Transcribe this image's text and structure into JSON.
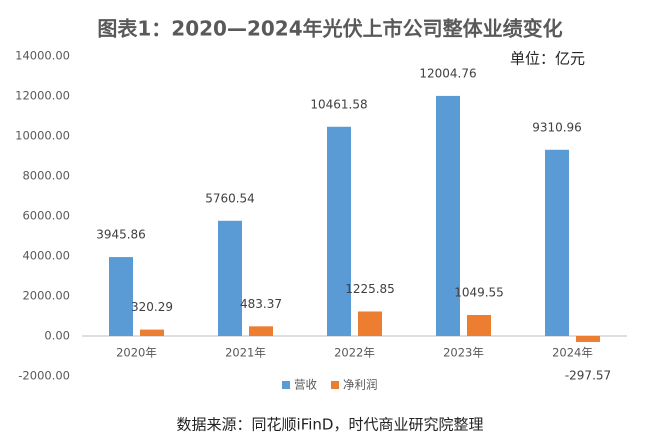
{
  "chart_data": {
    "type": "bar",
    "title": "图表1：2020—2024年光伏上市公司整体业绩变化",
    "unit": "单位：亿元",
    "source": "数据来源：同花顺iFinD，时代商业研究院整理",
    "categories": [
      "2020年",
      "2021年",
      "2022年",
      "2023年",
      "2024年"
    ],
    "series": [
      {
        "name": "营收",
        "color": "#5b9bd5",
        "values": [
          3945.86,
          5760.54,
          10461.58,
          12004.76,
          9310.96
        ]
      },
      {
        "name": "净利润",
        "color": "#ed7d31",
        "values": [
          320.29,
          483.37,
          1225.85,
          1049.55,
          -297.57
        ]
      }
    ],
    "ylim": [
      -2000,
      14000
    ],
    "yticks": [
      {
        "value": -2000,
        "label": "-2000.00"
      },
      {
        "value": 0,
        "label": "0.00"
      },
      {
        "value": 2000,
        "label": "2000.00"
      },
      {
        "value": 4000,
        "label": "4000.00"
      },
      {
        "value": 6000,
        "label": "6000.00"
      },
      {
        "value": 8000,
        "label": "8000.00"
      },
      {
        "value": 10000,
        "label": "10000.00"
      },
      {
        "value": 12000,
        "label": "12000.00"
      },
      {
        "value": 14000,
        "label": "14000.00"
      }
    ],
    "grid": false,
    "legend": "bottom"
  }
}
